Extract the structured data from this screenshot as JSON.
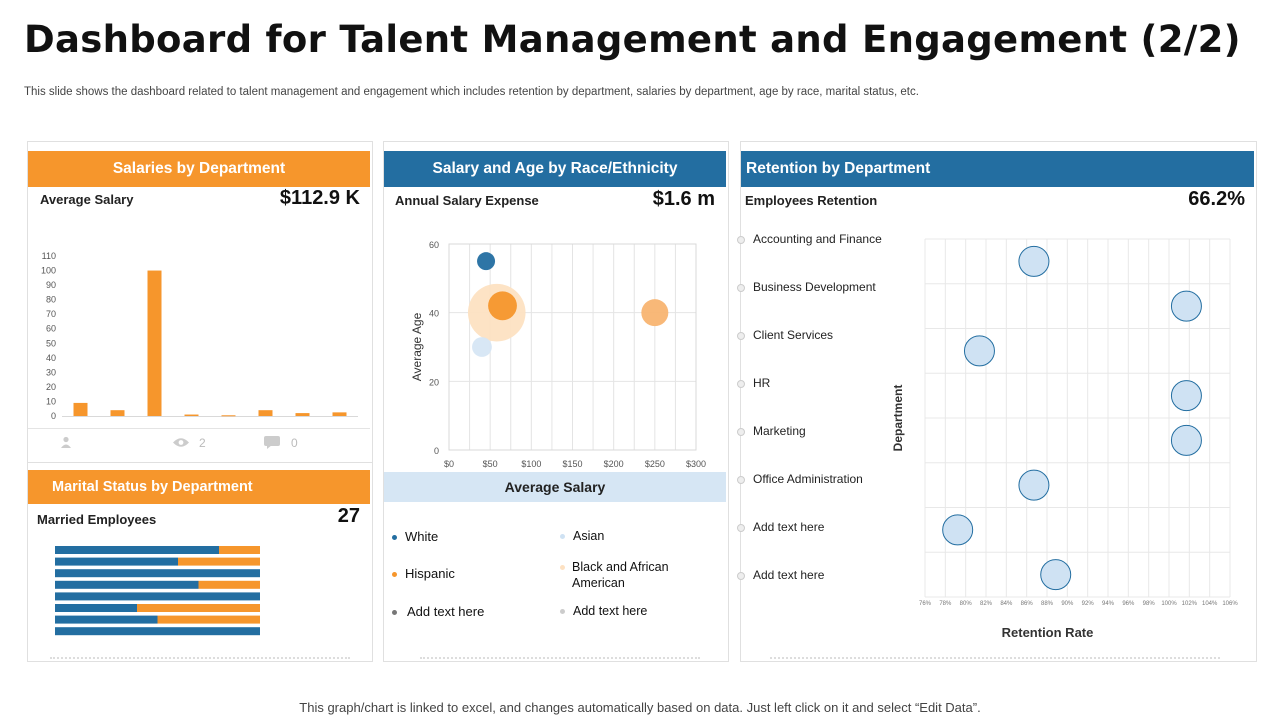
{
  "title": "Dashboard for Talent Management and Engagement (2/2)",
  "subtitle": "This slide shows the dashboard related to talent management and engagement which includes retention by department, salaries by department, age by race, marital status, etc.",
  "footer": "This graph/chart is linked to excel,  and changes automatically based on data. Just left click on it and select “Edit Data”.",
  "colors": {
    "orange": "#f6962c",
    "blue": "#236ea1",
    "light_blue": "#cfe2f3",
    "bubble_fill": "#cfe2f3",
    "bubble_stroke": "#236ea1"
  },
  "salaries_panel": {
    "header": "Salaries by Department",
    "kpi_label": "Average Salary",
    "kpi_value": "$112.9 K",
    "views": "2",
    "comments": "0",
    "icons": [
      "user-icon",
      "eye-icon",
      "comment-icon"
    ]
  },
  "marital_panel": {
    "header": "Marital Status by Department",
    "kpi_label": "Married Employees",
    "kpi_value": "27"
  },
  "race_panel": {
    "header": "Salary and Age by Race/Ethnicity",
    "kpi_label": "Annual Salary Expense",
    "kpi_value": "$1.6 m",
    "x_title": "Average Salary",
    "legend": [
      {
        "label": "White",
        "color": "#236ea1"
      },
      {
        "label": "Asian",
        "color": "#cfe2f3"
      },
      {
        "label": "Hispanic",
        "color": "#f6962c"
      },
      {
        "label": "Black and African American",
        "color": "#fde1c2"
      },
      {
        "label": "Add text here",
        "color": "#777777"
      },
      {
        "label": "Add text here",
        "color": "#cccccc"
      }
    ]
  },
  "retention_panel": {
    "header": "Retention by Department",
    "kpi_label": "Employees Retention",
    "kpi_value": "66.2%"
  },
  "chart_data": [
    {
      "type": "bar",
      "categories": [
        "",
        "",
        "",
        "",
        "",
        "",
        "",
        ""
      ],
      "values": [
        9,
        4,
        100,
        1,
        0.5,
        4,
        2,
        2.5
      ],
      "ylim": [
        0,
        110
      ],
      "yticks": [
        "0",
        "10",
        "20",
        "30",
        "40",
        "50",
        "60",
        "70",
        "80",
        "90",
        "100",
        "110"
      ]
    },
    {
      "type": "bar",
      "orientation": "horizontal-stacked",
      "series": [
        {
          "name": "",
          "color": "#236ea1",
          "values": [
            80,
            60,
            100,
            70,
            100,
            40,
            50,
            100
          ]
        },
        {
          "name": "",
          "color": "#f6962c",
          "values": [
            20,
            40,
            0,
            30,
            0,
            60,
            50,
            0
          ]
        }
      ],
      "xlim": [
        0,
        100
      ]
    },
    {
      "type": "scatter",
      "subtype": "bubble",
      "xlabel": "Average Salary",
      "ylabel": "Average Age",
      "xlim": [
        0,
        300
      ],
      "ylim": [
        0,
        60
      ],
      "xticks": [
        "$0",
        "$50",
        "$100",
        "$150",
        "$200",
        "$250",
        "$300"
      ],
      "yticks": [
        "0",
        "20",
        "40",
        "60"
      ],
      "points": [
        {
          "x": 45,
          "y": 55,
          "size": 1.0,
          "color": "#236ea1"
        },
        {
          "x": 58,
          "y": 40,
          "size": 3.2,
          "color": "#fde1c2"
        },
        {
          "x": 65,
          "y": 42,
          "size": 1.6,
          "color": "#f6962c"
        },
        {
          "x": 250,
          "y": 40,
          "size": 1.5,
          "color": "#f8b471"
        },
        {
          "x": 40,
          "y": 30,
          "size": 1.1,
          "color": "#d6e6f4"
        }
      ]
    },
    {
      "type": "scatter",
      "subtype": "bubble",
      "xlabel": "Retention Rate",
      "ylabel": "Department",
      "categories": [
        "Accounting and Finance",
        "Business Development",
        "Client Services",
        "HR",
        "Marketing",
        "Office Administration",
        "Add text here",
        "Add text here"
      ],
      "values": [
        86,
        100,
        81,
        100,
        100,
        86,
        79,
        88
      ],
      "xlim": [
        76,
        104
      ],
      "xticks": [
        "76%",
        "78%",
        "80%",
        "82%",
        "84%",
        "86%",
        "88%",
        "90%",
        "92%",
        "94%",
        "96%",
        "98%",
        "100%",
        "102%",
        "104%",
        "106%"
      ]
    }
  ]
}
